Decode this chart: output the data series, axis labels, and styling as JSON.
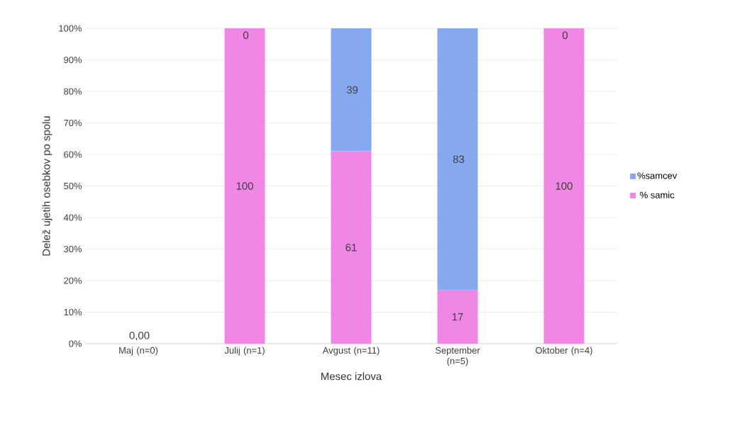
{
  "chart_data": {
    "type": "bar",
    "stacked": true,
    "xlabel": "Mesec izlova",
    "ylabel": "Delež ujetih osebkov po spolu",
    "categories": [
      "Maj (n=0)",
      "Julij (n=1)",
      "Avgust (n=11)",
      "September (n=5)",
      "Oktober (n=4)"
    ],
    "series": [
      {
        "name": "% samic",
        "color": "#f087e4",
        "values": [
          0,
          100,
          61,
          17,
          100
        ],
        "value_labels": [
          null,
          "100",
          "61",
          "17",
          "100"
        ]
      },
      {
        "name": "%samcev",
        "color": "#86a8ee",
        "values": [
          0,
          0,
          39,
          83,
          0
        ],
        "value_labels": [
          "0,00",
          "0",
          "39",
          "83",
          "0"
        ]
      }
    ],
    "ylim": [
      0,
      100
    ],
    "yticks": [
      {
        "value": 0,
        "label": "0%"
      },
      {
        "value": 10,
        "label": "10%"
      },
      {
        "value": 20,
        "label": "20%"
      },
      {
        "value": 30,
        "label": "30%"
      },
      {
        "value": 40,
        "label": "40%"
      },
      {
        "value": 50,
        "label": "50%"
      },
      {
        "value": 60,
        "label": "60%"
      },
      {
        "value": 70,
        "label": "70%"
      },
      {
        "value": 80,
        "label": "80%"
      },
      {
        "value": 90,
        "label": "90%"
      },
      {
        "value": 100,
        "label": "100%"
      }
    ],
    "grid": "y",
    "legend": "right"
  }
}
